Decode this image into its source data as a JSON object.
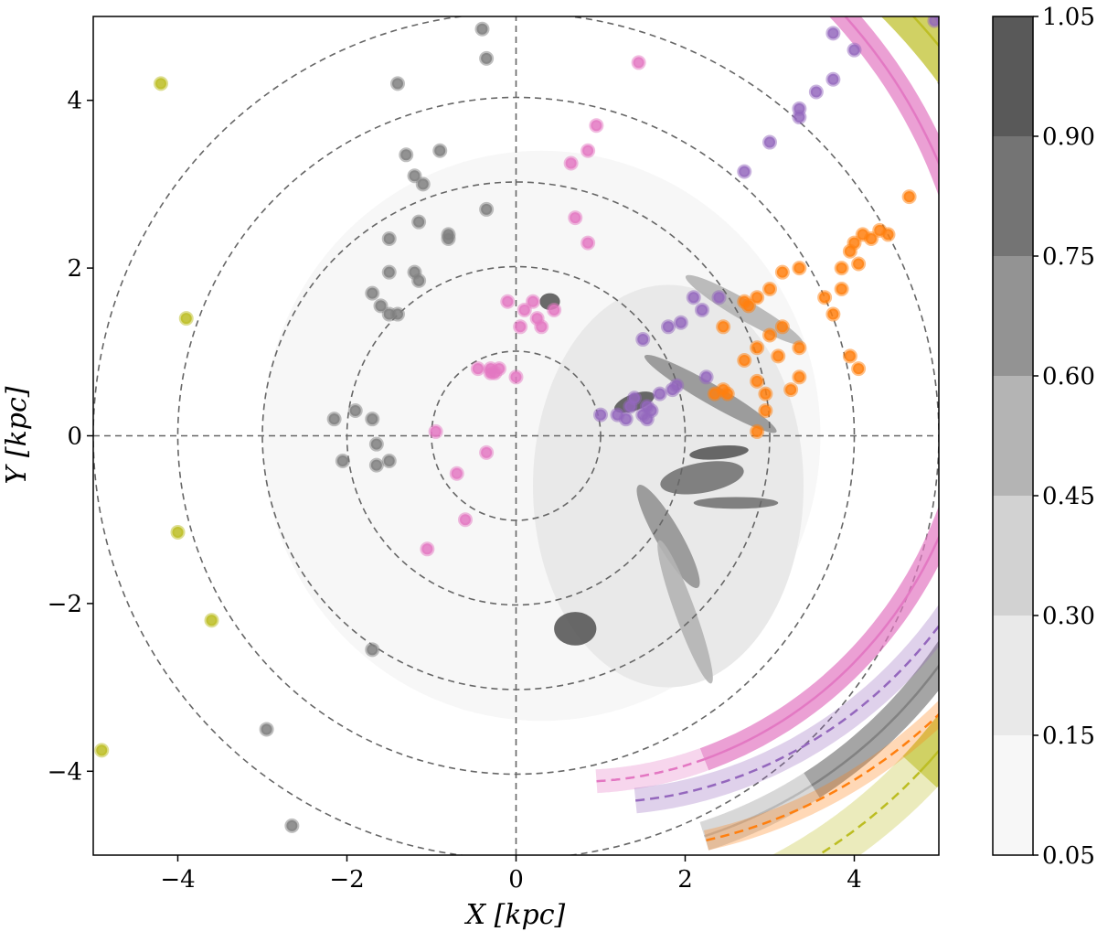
{
  "chart_data": {
    "type": "scatter",
    "xlabel": "X [kpc]",
    "ylabel": "Y [kpc]",
    "xlim": [
      -5,
      5
    ],
    "ylim": [
      -5,
      5
    ],
    "x_ticks": [
      -4,
      -2,
      0,
      2,
      4
    ],
    "y_ticks": [
      -4,
      -2,
      0,
      2,
      4
    ],
    "x_tick_labels": [
      "−4",
      "−2",
      "0",
      "2",
      "4"
    ],
    "y_tick_labels": [
      "−4",
      "−2",
      "0",
      "2",
      "4"
    ],
    "reference_circles_radius_kpc": [
      1,
      2,
      3,
      4,
      5
    ],
    "colorbar": {
      "levels": [
        0.05,
        0.15,
        0.3,
        0.45,
        0.6,
        0.75,
        0.9,
        1.05
      ],
      "tick_labels": [
        "0.05",
        "0.15",
        "0.30",
        "0.45",
        "0.60",
        "0.75",
        "0.90",
        "1.05"
      ],
      "colors": [
        "#f7f7f7",
        "#e9e9e9",
        "#d2d2d2",
        "#b4b4b4",
        "#939393",
        "#747474",
        "#595959",
        "#3e3e3e"
      ]
    },
    "density_blobs": [
      {
        "x": 2.2,
        "y": -0.5,
        "rx": 0.5,
        "ry": 0.18,
        "angle": 10,
        "level": 5
      },
      {
        "x": 2.4,
        "y": -0.2,
        "rx": 0.35,
        "ry": 0.08,
        "angle": 5,
        "level": 6
      },
      {
        "x": 2.3,
        "y": 0.5,
        "rx": 0.9,
        "ry": 0.12,
        "angle": -30,
        "level": 4
      },
      {
        "x": 2.7,
        "y": 1.5,
        "rx": 0.8,
        "ry": 0.12,
        "angle": -30,
        "level": 3
      },
      {
        "x": 1.8,
        "y": -1.2,
        "rx": 0.7,
        "ry": 0.15,
        "angle": -60,
        "level": 4
      },
      {
        "x": 0.7,
        "y": -2.3,
        "rx": 0.25,
        "ry": 0.2,
        "angle": 0,
        "level": 6
      },
      {
        "x": 2.0,
        "y": -2.1,
        "rx": 0.9,
        "ry": 0.12,
        "angle": -70,
        "level": 3
      },
      {
        "x": 0.4,
        "y": 1.6,
        "rx": 0.12,
        "ry": 0.1,
        "angle": 0,
        "level": 6
      },
      {
        "x": 1.4,
        "y": 0.4,
        "rx": 0.25,
        "ry": 0.1,
        "angle": 20,
        "level": 6
      },
      {
        "x": 2.6,
        "y": -0.8,
        "rx": 0.5,
        "ry": 0.07,
        "angle": 0,
        "level": 5
      }
    ],
    "series": [
      {
        "name": "olive arm",
        "color": "#bcbd22",
        "arm": {
          "a0": 2.04,
          "r0": 4.46,
          "k": 0.2,
          "width": 0.55,
          "solid_from_deg": -40,
          "solid_to_deg": 80,
          "faded_from_deg": -62,
          "faded_to_deg": -40,
          "faded_style": "dashed"
        },
        "points": [
          [
            -4.2,
            4.2
          ],
          [
            -3.9,
            1.4
          ],
          [
            -4.0,
            -1.15
          ],
          [
            -3.6,
            -2.2
          ],
          [
            -4.9,
            -3.75
          ]
        ]
      },
      {
        "name": "gray arm",
        "color": "#7f7f7f",
        "arm": {
          "a0": 4.05,
          "r0": 2.04,
          "k": 0.2,
          "width": 0.35,
          "solid_from_deg": -50,
          "solid_to_deg": 40,
          "faded_from_deg": -65,
          "faded_to_deg": -50,
          "faded_style": "solid"
        },
        "points": [
          [
            -0.4,
            4.85
          ],
          [
            -0.35,
            4.5
          ],
          [
            -1.4,
            4.2
          ],
          [
            -1.3,
            3.35
          ],
          [
            -1.2,
            3.1
          ],
          [
            -1.1,
            3.0
          ],
          [
            -0.9,
            3.4
          ],
          [
            -0.35,
            2.7
          ],
          [
            -1.15,
            2.55
          ],
          [
            -0.8,
            2.4
          ],
          [
            -0.8,
            2.35
          ],
          [
            -1.5,
            2.35
          ],
          [
            -1.5,
            1.95
          ],
          [
            -1.2,
            1.95
          ],
          [
            -1.15,
            1.85
          ],
          [
            -1.7,
            1.7
          ],
          [
            -1.6,
            1.55
          ],
          [
            -1.5,
            1.45
          ],
          [
            -1.4,
            1.45
          ],
          [
            -1.9,
            0.3
          ],
          [
            -2.15,
            0.2
          ],
          [
            -1.7,
            0.2
          ],
          [
            -1.65,
            -0.1
          ],
          [
            -1.5,
            -0.3
          ],
          [
            -1.65,
            -0.35
          ],
          [
            -2.05,
            -0.3
          ],
          [
            -1.7,
            -2.55
          ],
          [
            -2.95,
            -3.5
          ],
          [
            -2.65,
            -4.65
          ]
        ]
      },
      {
        "name": "pink arm",
        "color": "#e377c2",
        "arm": {
          "a0": 4.85,
          "r0": 0.52,
          "k": 0.2,
          "width": 0.28,
          "solid_from_deg": -60,
          "solid_to_deg": 55,
          "faded_from_deg": -77,
          "faded_to_deg": -60,
          "faded_style": "dashed",
          "faded_upper_from_deg": 55,
          "faded_upper_to_deg": 72
        },
        "points": [
          [
            1.45,
            4.45
          ],
          [
            0.95,
            3.7
          ],
          [
            0.85,
            3.4
          ],
          [
            0.65,
            3.25
          ],
          [
            0.7,
            2.6
          ],
          [
            0.85,
            2.3
          ],
          [
            -0.1,
            1.6
          ],
          [
            0.2,
            1.6
          ],
          [
            0.1,
            1.5
          ],
          [
            0.25,
            1.4
          ],
          [
            0.45,
            1.5
          ],
          [
            0.05,
            1.3
          ],
          [
            0.3,
            1.3
          ],
          [
            -0.2,
            0.8
          ],
          [
            -0.3,
            0.8
          ],
          [
            -0.45,
            0.8
          ],
          [
            -0.3,
            0.75
          ],
          [
            -0.25,
            0.75
          ],
          [
            0.0,
            0.7
          ],
          [
            -0.95,
            0.05
          ],
          [
            -0.35,
            -0.2
          ],
          [
            -0.7,
            -0.45
          ],
          [
            -0.6,
            -1.0
          ],
          [
            -1.05,
            -1.35
          ]
        ]
      },
      {
        "name": "purple arm",
        "color": "#9467bd",
        "arm": {
          "a0": 6.03,
          "r0": 0.0,
          "k": 0.22,
          "width": 0.3,
          "solid_from_deg": -20,
          "solid_to_deg": 70,
          "faded_from_deg": -72,
          "faded_to_deg": -20,
          "faded_style": "dashed"
        },
        "points": [
          [
            4.95,
            4.95
          ],
          [
            3.75,
            4.8
          ],
          [
            4.0,
            4.6
          ],
          [
            3.75,
            4.25
          ],
          [
            3.55,
            4.1
          ],
          [
            3.35,
            3.9
          ],
          [
            3.35,
            3.8
          ],
          [
            3.0,
            3.5
          ],
          [
            2.7,
            3.15
          ],
          [
            2.1,
            1.65
          ],
          [
            2.4,
            1.65
          ],
          [
            2.2,
            1.5
          ],
          [
            1.95,
            1.35
          ],
          [
            1.8,
            1.3
          ],
          [
            1.5,
            1.15
          ],
          [
            2.25,
            0.7
          ],
          [
            1.9,
            0.6
          ],
          [
            1.85,
            0.55
          ],
          [
            1.7,
            0.5
          ],
          [
            1.4,
            0.45
          ],
          [
            1.35,
            0.35
          ],
          [
            1.55,
            0.35
          ],
          [
            1.6,
            0.3
          ],
          [
            1.5,
            0.25
          ],
          [
            1.0,
            0.25
          ],
          [
            1.2,
            0.25
          ],
          [
            1.3,
            0.2
          ],
          [
            1.55,
            0.2
          ]
        ]
      },
      {
        "name": "orange arm",
        "color": "#ff7f0e",
        "arm": {
          "a0": 6.83,
          "r0": 0.0,
          "k": 0.22,
          "width": 0.24,
          "solid_from_deg": -10,
          "solid_to_deg": 40,
          "faded_from_deg": -65,
          "faded_to_deg": -10,
          "faded_style": "dashed"
        },
        "points": [
          [
            4.65,
            2.85
          ],
          [
            4.3,
            2.45
          ],
          [
            4.1,
            2.4
          ],
          [
            4.2,
            2.35
          ],
          [
            4.0,
            2.3
          ],
          [
            3.95,
            2.2
          ],
          [
            4.4,
            2.4
          ],
          [
            4.05,
            2.05
          ],
          [
            3.85,
            2.0
          ],
          [
            3.35,
            2.0
          ],
          [
            3.15,
            1.95
          ],
          [
            3.85,
            1.75
          ],
          [
            3.65,
            1.65
          ],
          [
            3.0,
            1.75
          ],
          [
            2.85,
            1.65
          ],
          [
            2.7,
            1.6
          ],
          [
            2.75,
            1.55
          ],
          [
            3.75,
            1.45
          ],
          [
            3.15,
            1.3
          ],
          [
            2.45,
            1.3
          ],
          [
            3.0,
            1.2
          ],
          [
            2.85,
            1.05
          ],
          [
            3.35,
            1.05
          ],
          [
            3.1,
            0.95
          ],
          [
            2.7,
            0.9
          ],
          [
            3.95,
            0.95
          ],
          [
            4.05,
            0.8
          ],
          [
            3.35,
            0.7
          ],
          [
            2.85,
            0.65
          ],
          [
            3.25,
            0.55
          ],
          [
            2.45,
            0.55
          ],
          [
            2.35,
            0.5
          ],
          [
            2.5,
            0.5
          ],
          [
            2.95,
            0.5
          ],
          [
            2.95,
            0.3
          ],
          [
            2.85,
            0.05
          ]
        ]
      }
    ]
  }
}
